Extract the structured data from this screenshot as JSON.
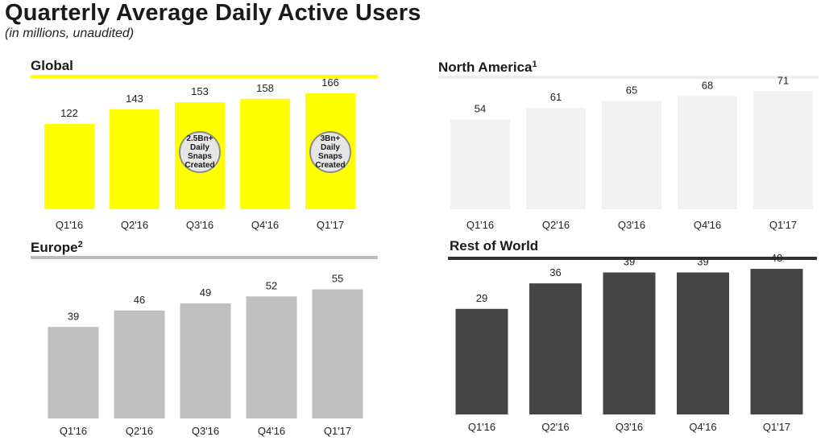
{
  "page": {
    "title": "Quarterly Average Daily Active Users",
    "subtitle": "(in millions, unaudited)"
  },
  "colors": {
    "global_bar": "#ffff00",
    "global_rule": "#ffff00",
    "north_america_bar": "#f1f1f1",
    "north_america_rule": "#eeeeee",
    "europe_bar": "#c0c0c0",
    "europe_rule": "#bdbdbd",
    "rest_of_world_bar": "#454545",
    "rest_of_world_rule": "#333333"
  },
  "chart_data": [
    {
      "id": "global",
      "type": "bar",
      "title": "Global",
      "footnote": "",
      "categories": [
        "Q1'16",
        "Q2'16",
        "Q3'16",
        "Q4'16",
        "Q1'17"
      ],
      "values": [
        122,
        143,
        153,
        158,
        166
      ],
      "ylim": [
        0,
        175
      ],
      "grid": false,
      "callouts": [
        {
          "category": "Q3'16",
          "text": "2.5Bn+\nDaily\nSnaps\nCreated"
        },
        {
          "category": "Q1'17",
          "text": "3Bn+\nDaily\nSnaps\nCreated"
        }
      ]
    },
    {
      "id": "north_america",
      "type": "bar",
      "title": "North America",
      "footnote": "1",
      "categories": [
        "Q1'16",
        "Q2'16",
        "Q3'16",
        "Q4'16",
        "Q1'17"
      ],
      "values": [
        54,
        61,
        65,
        68,
        71
      ],
      "ylim": [
        0,
        75
      ],
      "grid": false
    },
    {
      "id": "europe",
      "type": "bar",
      "title": "Europe",
      "footnote": "2",
      "categories": [
        "Q1'16",
        "Q2'16",
        "Q3'16",
        "Q4'16",
        "Q1'17"
      ],
      "values": [
        39,
        46,
        49,
        52,
        55
      ],
      "ylim": [
        0,
        60
      ],
      "grid": false
    },
    {
      "id": "rest_of_world",
      "type": "bar",
      "title": "Rest of World",
      "footnote": "",
      "categories": [
        "Q1'16",
        "Q2'16",
        "Q3'16",
        "Q4'16",
        "Q1'17"
      ],
      "values": [
        29,
        36,
        39,
        39,
        40
      ],
      "ylim": [
        0,
        42
      ],
      "grid": false
    }
  ]
}
